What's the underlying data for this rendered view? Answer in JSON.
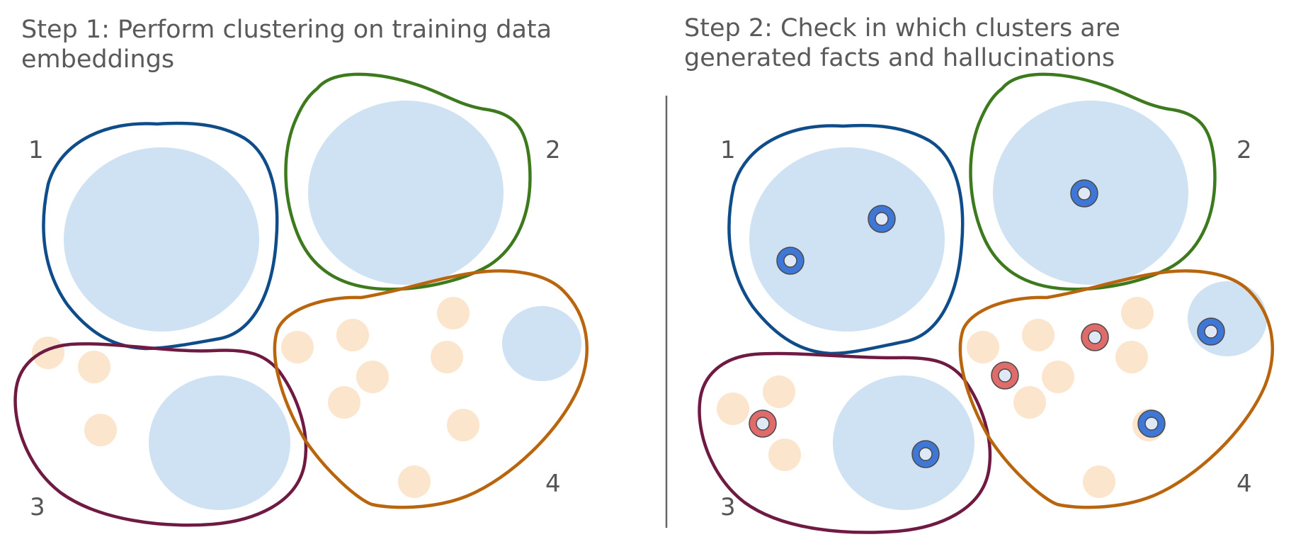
{
  "panels": [
    {
      "title_lines": [
        "Step 1: Perform clustering on training data",
        "embeddings"
      ],
      "cluster_labels": [
        "1",
        "2",
        "3",
        "4"
      ]
    },
    {
      "title_lines": [
        "Step 2: Check in which clusters are",
        "generated facts and hallucinations"
      ],
      "cluster_labels": [
        "1",
        "2",
        "3",
        "4"
      ]
    }
  ],
  "colors": {
    "cluster_1": "#0f4c8a",
    "cluster_2": "#3d7a1e",
    "cluster_3": "#6e1a42",
    "cluster_4": "#b8650d",
    "region_fill": "#cfe2f3",
    "sparse_point": "#fbe5cd",
    "fact_marker": "#3f77d6",
    "hallucination_marker": "#e06b6b",
    "divider": "#666666"
  },
  "legend_semantics": {
    "fact_marker": "generated fact",
    "hallucination_marker": "hallucination"
  }
}
